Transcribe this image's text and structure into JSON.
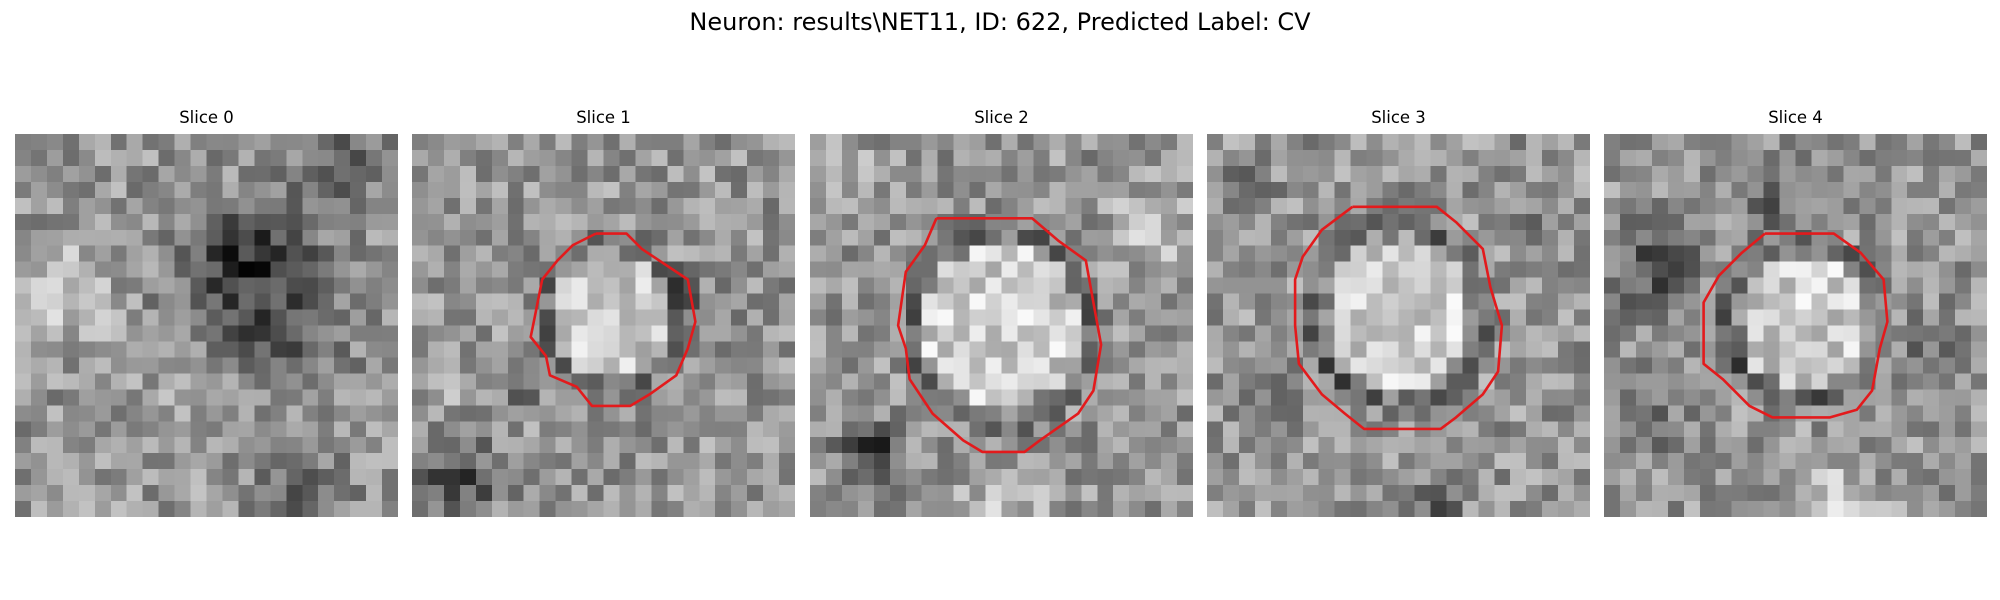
{
  "figure": {
    "title": "Neuron: results\\NET11, ID: 622, Predicted Label: CV"
  },
  "colors": {
    "contour": "#e31a1c",
    "background": "#ffffff"
  },
  "grid_size": 24,
  "slices": [
    {
      "label": "Slice 0",
      "has_contour": false,
      "seed": 11,
      "blobs": [
        [
          0.65,
          0.45,
          0.22,
          -70
        ],
        [
          0.6,
          0.3,
          0.12,
          -60
        ],
        [
          0.12,
          0.42,
          0.12,
          55
        ],
        [
          0.85,
          0.08,
          0.1,
          -60
        ],
        [
          0.75,
          0.96,
          0.12,
          -60
        ],
        [
          0.45,
          0.7,
          0.15,
          30
        ]
      ]
    },
    {
      "label": "Slice 1",
      "has_contour": true,
      "seed": 23,
      "center": [
        0.52,
        0.47
      ],
      "rx": 0.42,
      "ry": 0.45,
      "contour": [
        [
          0.48,
          0.26
        ],
        [
          0.56,
          0.26
        ],
        [
          0.6,
          0.3
        ],
        [
          0.72,
          0.38
        ],
        [
          0.74,
          0.49
        ],
        [
          0.72,
          0.56
        ],
        [
          0.69,
          0.63
        ],
        [
          0.62,
          0.68
        ],
        [
          0.57,
          0.71
        ],
        [
          0.47,
          0.71
        ],
        [
          0.43,
          0.66
        ],
        [
          0.36,
          0.63
        ],
        [
          0.35,
          0.58
        ],
        [
          0.31,
          0.53
        ],
        [
          0.32,
          0.48
        ],
        [
          0.34,
          0.38
        ],
        [
          0.38,
          0.33
        ],
        [
          0.42,
          0.29
        ],
        [
          0.48,
          0.26
        ]
      ],
      "blobs": [
        [
          0.12,
          0.9,
          0.1,
          -80
        ],
        [
          0.28,
          0.66,
          0.06,
          -40
        ],
        [
          0.1,
          0.66,
          0.06,
          50
        ],
        [
          0.72,
          0.45,
          0.08,
          -40
        ]
      ]
    },
    {
      "label": "Slice 2",
      "has_contour": true,
      "seed": 37,
      "center": [
        0.5,
        0.5
      ],
      "rx": 0.55,
      "ry": 0.6,
      "contour": [
        [
          0.33,
          0.22
        ],
        [
          0.58,
          0.22
        ],
        [
          0.65,
          0.28
        ],
        [
          0.72,
          0.33
        ],
        [
          0.74,
          0.44
        ],
        [
          0.76,
          0.55
        ],
        [
          0.74,
          0.67
        ],
        [
          0.7,
          0.73
        ],
        [
          0.6,
          0.8
        ],
        [
          0.56,
          0.83
        ],
        [
          0.45,
          0.83
        ],
        [
          0.4,
          0.8
        ],
        [
          0.32,
          0.73
        ],
        [
          0.26,
          0.64
        ],
        [
          0.25,
          0.56
        ],
        [
          0.23,
          0.5
        ],
        [
          0.25,
          0.36
        ],
        [
          0.3,
          0.29
        ],
        [
          0.33,
          0.22
        ]
      ],
      "blobs": [
        [
          0.15,
          0.82,
          0.07,
          -110
        ],
        [
          0.9,
          0.25,
          0.1,
          50
        ],
        [
          0.05,
          0.05,
          0.08,
          40
        ],
        [
          0.5,
          0.98,
          0.1,
          50
        ]
      ]
    },
    {
      "label": "Slice 3",
      "has_contour": true,
      "seed": 41,
      "center": [
        0.5,
        0.47
      ],
      "rx": 0.52,
      "ry": 0.55,
      "contour": [
        [
          0.38,
          0.19
        ],
        [
          0.6,
          0.19
        ],
        [
          0.65,
          0.23
        ],
        [
          0.72,
          0.3
        ],
        [
          0.74,
          0.4
        ],
        [
          0.77,
          0.5
        ],
        [
          0.76,
          0.62
        ],
        [
          0.72,
          0.68
        ],
        [
          0.65,
          0.74
        ],
        [
          0.61,
          0.77
        ],
        [
          0.41,
          0.77
        ],
        [
          0.36,
          0.73
        ],
        [
          0.3,
          0.68
        ],
        [
          0.24,
          0.6
        ],
        [
          0.23,
          0.5
        ],
        [
          0.23,
          0.38
        ],
        [
          0.25,
          0.32
        ],
        [
          0.3,
          0.25
        ],
        [
          0.38,
          0.19
        ]
      ],
      "blobs": [
        [
          0.15,
          0.7,
          0.06,
          -40
        ],
        [
          0.6,
          0.98,
          0.06,
          -60
        ],
        [
          0.1,
          0.15,
          0.07,
          -30
        ],
        [
          0.85,
          0.2,
          0.06,
          -30
        ]
      ]
    },
    {
      "label": "Slice 4",
      "has_contour": true,
      "seed": 53,
      "center": [
        0.52,
        0.49
      ],
      "rx": 0.46,
      "ry": 0.48,
      "contour": [
        [
          0.42,
          0.26
        ],
        [
          0.6,
          0.26
        ],
        [
          0.67,
          0.31
        ],
        [
          0.73,
          0.38
        ],
        [
          0.74,
          0.49
        ],
        [
          0.72,
          0.56
        ],
        [
          0.7,
          0.67
        ],
        [
          0.66,
          0.72
        ],
        [
          0.59,
          0.74
        ],
        [
          0.44,
          0.74
        ],
        [
          0.38,
          0.71
        ],
        [
          0.31,
          0.64
        ],
        [
          0.26,
          0.6
        ],
        [
          0.26,
          0.44
        ],
        [
          0.3,
          0.37
        ],
        [
          0.36,
          0.31
        ],
        [
          0.42,
          0.26
        ]
      ],
      "blobs": [
        [
          0.12,
          0.35,
          0.12,
          -70
        ],
        [
          0.45,
          0.2,
          0.08,
          -50
        ],
        [
          0.1,
          0.72,
          0.1,
          -50
        ],
        [
          0.6,
          0.97,
          0.1,
          60
        ],
        [
          0.85,
          0.55,
          0.08,
          -40
        ]
      ]
    }
  ]
}
